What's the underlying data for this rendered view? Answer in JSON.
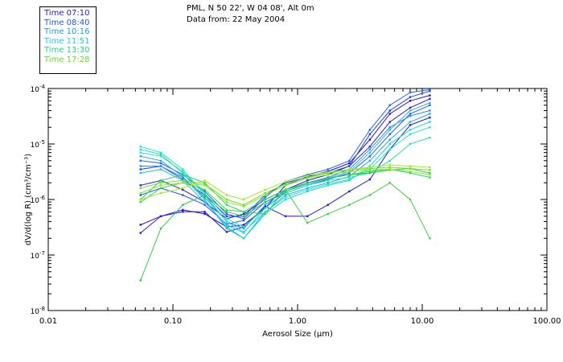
{
  "header": {
    "line1": "PML, N 50 22', W 04 08', Alt 0m",
    "line2": "Data from: 22 May 2004"
  },
  "colors": {
    "axis": "#000000",
    "background": "#ffffff"
  },
  "chart_data": {
    "type": "line",
    "title": "PML, N 50 22', W 04 08', Alt 0m",
    "subtitle": "Data from: 22 May 2004",
    "xlabel": "Aerosol Size (μm)",
    "ylabel": "dV/d(log R) (cm³/cm⁻³)",
    "xscale": "log",
    "yscale": "log",
    "xlim": [
      0.01,
      100
    ],
    "ylim": [
      1e-08,
      0.0001
    ],
    "x_ticks": [
      {
        "v": 0.01,
        "label": "0.01"
      },
      {
        "v": 0.1,
        "label": "0.10"
      },
      {
        "v": 1,
        "label": "1.00"
      },
      {
        "v": 10,
        "label": "10.00"
      },
      {
        "v": 100,
        "label": "100.00"
      }
    ],
    "y_ticks": [
      {
        "v": 1e-08,
        "base": "10",
        "exp": "-8"
      },
      {
        "v": 1e-07,
        "base": "10",
        "exp": "-7"
      },
      {
        "v": 1e-06,
        "base": "10",
        "exp": "-6"
      },
      {
        "v": 1e-05,
        "base": "10",
        "exp": "-5"
      },
      {
        "v": 0.0001,
        "base": "10",
        "exp": "-4"
      }
    ],
    "grid": false,
    "legend_position": "top-left",
    "x": [
      0.055,
      0.08,
      0.12,
      0.18,
      0.27,
      0.37,
      0.55,
      0.8,
      1.2,
      1.75,
      2.6,
      3.8,
      5.5,
      8.0,
      11.5
    ],
    "series": [
      {
        "name": "Time 07:10",
        "color": "#2a10c8",
        "values": [
          3.5e-07,
          5e-07,
          6.5e-07,
          5.5e-07,
          3.2e-07,
          3.5e-07,
          7e-07,
          1.8e-06,
          2.6e-06,
          3.2e-06,
          4.5e-06,
          1.2e-05,
          3.5e-05,
          6e-05,
          7.5e-05
        ]
      },
      {
        "name": "Time 07:10",
        "color": "#3418cc",
        "values": [
          1.8e-06,
          2.2e-06,
          1.5e-06,
          9e-07,
          4.5e-07,
          5.5e-07,
          1e-06,
          1.5e-06,
          2.2e-06,
          2.8e-06,
          4e-06,
          9e-06,
          2.5e-05,
          4.5e-05,
          6.5e-05
        ]
      },
      {
        "name": "Time 07:10",
        "color": "#1f18d8",
        "values": [
          2.5e-07,
          5e-07,
          6e-07,
          6e-07,
          2.6e-07,
          3.2e-07,
          7.5e-07,
          5e-07,
          5e-07,
          8e-07,
          1.4e-06,
          2.3e-06,
          8e-06,
          2.2e-05,
          3e-05
        ]
      },
      {
        "name": "Time 08:40",
        "color": "#1b3ef0",
        "values": [
          3.5e-06,
          4e-06,
          2.3e-06,
          1.2e-06,
          5e-07,
          5e-07,
          1.2e-06,
          2e-06,
          2.5e-06,
          3e-06,
          4e-06,
          1.5e-05,
          4e-05,
          7e-05,
          9e-05
        ]
      },
      {
        "name": "Time 08:40",
        "color": "#2a55f0",
        "values": [
          1.2e-06,
          1.6e-06,
          1.2e-06,
          8e-07,
          3.6e-07,
          4.2e-07,
          9e-07,
          1.3e-06,
          1.8e-06,
          2.3e-06,
          3e-06,
          6e-06,
          1.5e-05,
          3.5e-05,
          5e-05
        ]
      },
      {
        "name": "Time 08:40",
        "color": "#1e68f2",
        "values": [
          5e-06,
          4.5e-06,
          2.8e-06,
          1.4e-06,
          5.5e-07,
          4.5e-07,
          1.1e-06,
          2.1e-06,
          2.8e-06,
          3.5e-06,
          5e-06,
          1.8e-05,
          5e-05,
          8.5e-05,
          9.5e-05
        ]
      },
      {
        "name": "Time 10:16",
        "color": "#1f90f0",
        "values": [
          4e-06,
          4e-06,
          2.5e-06,
          1.1e-06,
          4e-07,
          3e-07,
          8e-07,
          1.5e-06,
          2e-06,
          2.5e-06,
          3.5e-06,
          8e-06,
          2e-05,
          3.2e-05,
          4e-05
        ]
      },
      {
        "name": "Time 10:16",
        "color": "#22a8ee",
        "values": [
          6e-06,
          5e-06,
          2.6e-06,
          1e-06,
          3e-07,
          2e-07,
          6e-07,
          1.2e-06,
          1.6e-06,
          2e-06,
          2.6e-06,
          5e-06,
          1.2e-05,
          2.5e-05,
          3.5e-05
        ]
      },
      {
        "name": "Time 10:16",
        "color": "#20b8e6",
        "values": [
          3e-06,
          3.5e-06,
          2.2e-06,
          9e-07,
          3.5e-07,
          2.5e-07,
          7e-07,
          1.4e-06,
          1.9e-06,
          2.4e-06,
          3.2e-06,
          7e-06,
          1.8e-05,
          4e-05,
          5.5e-05
        ]
      },
      {
        "name": "Time 11:51",
        "color": "#18d8d8",
        "values": [
          8e-06,
          6.5e-06,
          3e-06,
          1e-06,
          3.2e-07,
          2e-07,
          5.5e-07,
          1e-06,
          1.4e-06,
          1.8e-06,
          2.2e-06,
          4e-06,
          1e-05,
          1.8e-05,
          2.5e-05
        ]
      },
      {
        "name": "Time 11:51",
        "color": "#1de6c8",
        "values": [
          9e-06,
          7e-06,
          3.5e-06,
          1.2e-06,
          4e-07,
          2.6e-07,
          6e-07,
          1.1e-06,
          1.5e-06,
          1.9e-06,
          2.3e-06,
          3.5e-06,
          8e-06,
          1.5e-05,
          2e-05
        ]
      },
      {
        "name": "Time 11:51",
        "color": "#2ee0b0",
        "values": [
          7e-06,
          6e-06,
          3.2e-06,
          1.3e-06,
          4.5e-07,
          3.2e-07,
          7e-07,
          1.3e-06,
          1.8e-06,
          2.2e-06,
          2.5e-06,
          3e-06,
          5e-06,
          1e-05,
          1.3e-05
        ]
      },
      {
        "name": "Time 13:30",
        "color": "#1ed860",
        "values": [
          1e-06,
          2.2e-06,
          2.8e-06,
          2e-06,
          8e-07,
          6e-07,
          1e-06,
          1.5e-06,
          2e-06,
          2.4e-06,
          2.8e-06,
          3.2e-06,
          3.5e-06,
          3e-06,
          2.5e-06
        ]
      },
      {
        "name": "Time 13:30",
        "color": "#2ec850",
        "values": [
          3.5e-08,
          3e-07,
          8e-07,
          1.2e-06,
          6e-07,
          5e-07,
          9e-07,
          1.4e-06,
          2e-06,
          2.4e-06,
          2.8e-06,
          3e-06,
          3.4e-06,
          3.6e-06,
          3e-06
        ]
      },
      {
        "name": "Time 13:30",
        "color": "#40d040",
        "values": [
          9e-07,
          1.6e-06,
          2e-06,
          1.5e-06,
          6.5e-07,
          6e-07,
          5.5e-07,
          1.5e-06,
          3.8e-07,
          5.5e-07,
          8e-07,
          1.2e-06,
          2e-06,
          1e-06,
          2e-07
        ]
      },
      {
        "name": "Time 17:28",
        "color": "#88e830",
        "values": [
          1.3e-06,
          1.8e-06,
          2e-06,
          1.8e-06,
          9e-07,
          7.5e-07,
          1.2e-06,
          1.8e-06,
          2.4e-06,
          2.8e-06,
          3.2e-06,
          3.4e-06,
          3.5e-06,
          3.2e-06,
          2.8e-06
        ]
      },
      {
        "name": "Time 17:28",
        "color": "#70e020",
        "values": [
          1.6e-06,
          2e-06,
          2.2e-06,
          1.9e-06,
          1e-06,
          8e-07,
          1.3e-06,
          1.9e-06,
          2.5e-06,
          3e-06,
          3.4e-06,
          3.6e-06,
          3.8e-06,
          3.6e-06,
          3.4e-06
        ]
      },
      {
        "name": "Time 17:28",
        "color": "#a0e828",
        "values": [
          1e-06,
          1.3e-06,
          1.6e-06,
          2.2e-06,
          1.2e-06,
          1e-06,
          1.5e-06,
          2.1e-06,
          2.7e-06,
          3.1e-06,
          3.5e-06,
          3.8e-06,
          4.2e-06,
          4e-06,
          3.8e-06
        ]
      }
    ],
    "legend": [
      {
        "label": "Time 07:10",
        "color": "#2f12c8"
      },
      {
        "label": "Time 08:40",
        "color": "#1a56ee"
      },
      {
        "label": "Time 10:16",
        "color": "#1b9aee"
      },
      {
        "label": "Time 11:51",
        "color": "#1ed2d2"
      },
      {
        "label": "Time 13:30",
        "color": "#1ed68a"
      },
      {
        "label": "Time 17:28",
        "color": "#5ee028"
      }
    ]
  }
}
